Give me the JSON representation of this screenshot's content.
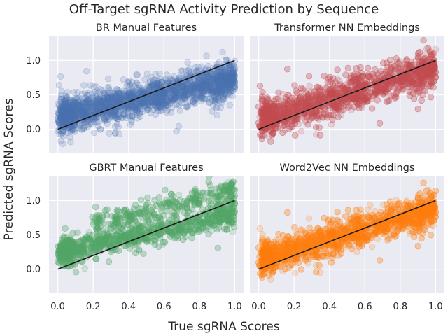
{
  "chart_data": {
    "type": "scatter",
    "title": "Off-Target sgRNA Activity Prediction by Sequence",
    "xlabel": "True sgRNA Scores",
    "ylabel": "Predicted sgRNA Scores",
    "xlim": [
      -0.05,
      1.05
    ],
    "ylim": [
      -0.35,
      1.35
    ],
    "xticks": [
      "0.0",
      "0.2",
      "0.4",
      "0.6",
      "0.8",
      "1.0"
    ],
    "yticks": [
      "0.0",
      "0.5",
      "1.0"
    ],
    "grid": true,
    "reference_line": {
      "from": [
        0,
        0
      ],
      "to": [
        1,
        1
      ],
      "color": "#1a1a1a"
    },
    "panels": [
      {
        "title": "BR Manual Features",
        "color": "#4c72b0",
        "approx_fit": {
          "slope": 0.55,
          "intercept": 0.18,
          "spread": 0.12
        }
      },
      {
        "title": "Transformer NN Embeddings",
        "color": "#c44e52",
        "approx_fit": {
          "slope": 0.75,
          "intercept": 0.13,
          "spread": 0.13
        }
      },
      {
        "title": "GBRT Manual Features",
        "color": "#55a868",
        "approx_fit": {
          "slope": 0.55,
          "intercept": 0.25,
          "spread": 0.09,
          "upper_band_offset": 0.35
        }
      },
      {
        "title": "Word2Vec NN Embeddings",
        "color": "#ff7f0e",
        "approx_fit": {
          "slope": 0.75,
          "intercept": 0.13,
          "spread": 0.12
        }
      }
    ]
  }
}
